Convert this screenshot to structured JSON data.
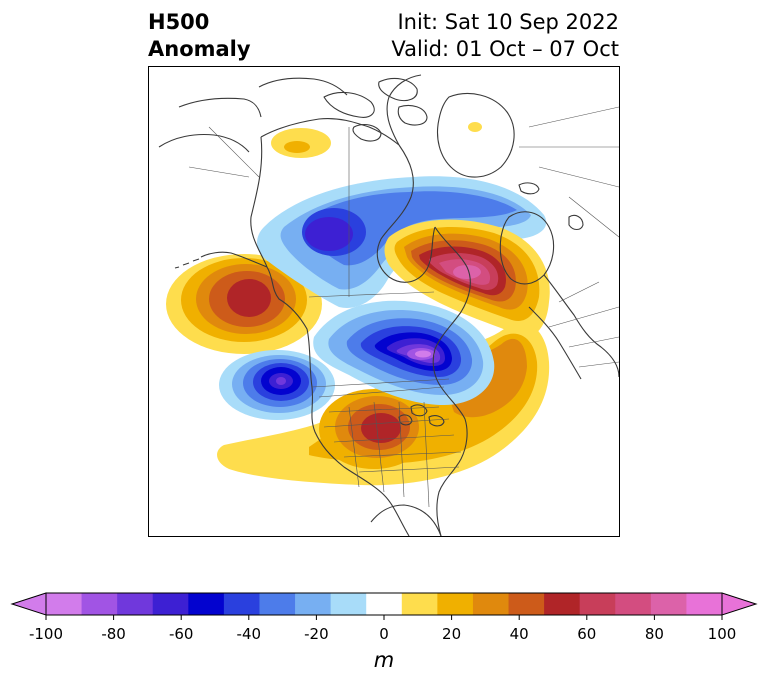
{
  "title": {
    "line1": "H500",
    "line2": "Anomaly",
    "init": "Init: Sat 10 Sep 2022",
    "valid": "Valid: 01 Oct – 07 Oct"
  },
  "map": {
    "projection": "polar-stereographic",
    "region": "North America / Arctic",
    "variable": "500 hPa geopotential height anomaly",
    "anomaly_centers": [
      {
        "sign": "positive",
        "peak_m": 65,
        "location": "Gulf of Alaska / NE Pacific"
      },
      {
        "sign": "negative",
        "peak_m": -65,
        "location": "NE Pacific west of Pacific Northwest"
      },
      {
        "sign": "negative",
        "peak_m": -55,
        "location": "Alaska"
      },
      {
        "sign": "negative",
        "peak_m": -40,
        "location": "Siberian Arctic"
      },
      {
        "sign": "positive",
        "peak_m": 85,
        "location": "Scandinavia / Northern Europe"
      },
      {
        "sign": "negative",
        "peak_m": -95,
        "location": "Hudson Bay / Greenland region"
      },
      {
        "sign": "positive",
        "peak_m": 60,
        "location": "Central United States / Great Lakes"
      },
      {
        "sign": "positive",
        "peak_m": 15,
        "location": "Northeast Asia"
      }
    ]
  },
  "colorbar": {
    "units": "m",
    "extend": "both",
    "bounds": [
      -100,
      -90,
      -80,
      -70,
      -60,
      -50,
      -40,
      -30,
      -20,
      -10,
      10,
      20,
      30,
      40,
      50,
      60,
      70,
      80,
      90,
      100
    ],
    "colors": [
      "#d27ceb",
      "#a154e4",
      "#7038dc",
      "#3d20d3",
      "#0303cf",
      "#2a40de",
      "#4d7cea",
      "#77aff2",
      "#a8dcf9",
      "#ffffff",
      "#fedd4d",
      "#f0b000",
      "#e0890d",
      "#cd5b1a",
      "#b02528",
      "#c83e5a",
      "#d34d80",
      "#dc62a9",
      "#e872d8"
    ],
    "under_color": "#d27ceb",
    "over_color": "#e872d8",
    "tick_values": [
      -100,
      -80,
      -60,
      -40,
      -20,
      0,
      20,
      40,
      60,
      80,
      100
    ],
    "tick_labels": [
      "-100",
      "-80",
      "-60",
      "-40",
      "-20",
      "0",
      "20",
      "40",
      "60",
      "80",
      "100"
    ]
  }
}
